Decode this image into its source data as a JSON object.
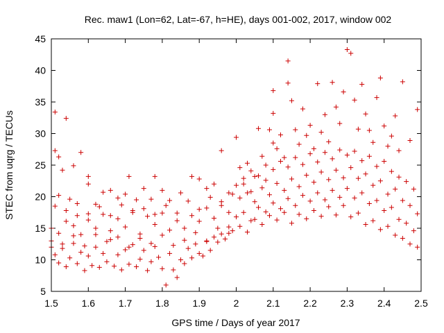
{
  "chart_data": {
    "type": "scatter",
    "title": "Rec. maw1 (Lon=62, Lat=-67, h=HE), days 001-002, 2017, window 002",
    "xlabel": "GPS time / Days of year 2017",
    "ylabel": "STEC from uqrg / TECUs",
    "xlim": [
      1.5,
      2.5
    ],
    "ylim": [
      5,
      45
    ],
    "xticks": [
      1.5,
      1.6,
      1.7,
      1.8,
      1.9,
      2.0,
      2.1,
      2.2,
      2.3,
      2.4,
      2.5
    ],
    "xtick_labels": [
      "1.5",
      "1.6",
      "1.7",
      "1.8",
      "1.9",
      "2",
      "2.1",
      "2.2",
      "2.3",
      "2.4",
      "2.5"
    ],
    "yticks": [
      5,
      10,
      15,
      20,
      25,
      30,
      35,
      40,
      45
    ],
    "ytick_labels": [
      "5",
      "10",
      "15",
      "20",
      "25",
      "30",
      "35",
      "40",
      "45"
    ],
    "grid": false,
    "marker": "+",
    "marker_color": "#cc0000",
    "series": [
      {
        "name": "STEC",
        "points": [
          [
            1.51,
            33.4
          ],
          [
            1.54,
            32.4
          ],
          [
            1.52,
            26.3
          ],
          [
            1.56,
            24.9
          ],
          [
            1.53,
            24.2
          ],
          [
            1.51,
            27.3
          ],
          [
            1.58,
            27.0
          ],
          [
            1.6,
            23.2
          ],
          [
            1.6,
            22.0
          ],
          [
            1.52,
            20.2
          ],
          [
            1.55,
            19.6
          ],
          [
            1.57,
            17.0
          ],
          [
            1.62,
            18.8
          ],
          [
            1.64,
            20.7
          ],
          [
            1.66,
            21.0
          ],
          [
            1.68,
            19.8
          ],
          [
            1.7,
            20.4
          ],
          [
            1.71,
            23.2
          ],
          [
            1.73,
            19.5
          ],
          [
            1.75,
            21.3
          ],
          [
            1.77,
            19.6
          ],
          [
            1.78,
            23.2
          ],
          [
            1.8,
            21.0
          ],
          [
            1.82,
            19.4
          ],
          [
            1.85,
            20.6
          ],
          [
            1.88,
            23.2
          ],
          [
            1.9,
            22.8
          ],
          [
            1.92,
            21.3
          ],
          [
            1.94,
            22.0
          ],
          [
            1.96,
            27.3
          ],
          [
            1.98,
            20.6
          ],
          [
            1.5,
            12.0
          ],
          [
            1.51,
            10.8
          ],
          [
            1.52,
            9.5
          ],
          [
            1.53,
            11.8
          ],
          [
            1.54,
            8.9
          ],
          [
            1.55,
            10.3
          ],
          [
            1.56,
            12.6
          ],
          [
            1.57,
            9.4
          ],
          [
            1.58,
            11.2
          ],
          [
            1.59,
            8.3
          ],
          [
            1.6,
            10.6
          ],
          [
            1.61,
            9.1
          ],
          [
            1.62,
            12.0
          ],
          [
            1.63,
            8.8
          ],
          [
            1.64,
            11.0
          ],
          [
            1.65,
            9.7
          ],
          [
            1.66,
            13.2
          ],
          [
            1.67,
            9.0
          ],
          [
            1.68,
            10.8
          ],
          [
            1.69,
            8.4
          ],
          [
            1.7,
            11.6
          ],
          [
            1.71,
            9.3
          ],
          [
            1.72,
            12.4
          ],
          [
            1.73,
            8.9
          ],
          [
            1.74,
            10.1
          ],
          [
            1.75,
            11.5
          ],
          [
            1.76,
            8.3
          ],
          [
            1.77,
            9.7
          ],
          [
            1.78,
            12.1
          ],
          [
            1.79,
            10.4
          ],
          [
            1.8,
            8.6
          ],
          [
            1.81,
            6.0
          ],
          [
            1.82,
            11.0
          ],
          [
            1.83,
            8.4
          ],
          [
            1.84,
            7.2
          ],
          [
            1.85,
            10.0
          ],
          [
            1.86,
            9.4
          ],
          [
            1.87,
            11.8
          ],
          [
            1.88,
            10.3
          ],
          [
            1.89,
            12.5
          ],
          [
            1.9,
            11.0
          ],
          [
            1.91,
            10.6
          ],
          [
            1.92,
            12.9
          ],
          [
            1.93,
            11.5
          ],
          [
            1.94,
            13.6
          ],
          [
            1.95,
            12.8
          ],
          [
            1.96,
            14.1
          ],
          [
            1.97,
            13.3
          ],
          [
            1.98,
            15.2
          ],
          [
            1.99,
            14.6
          ],
          [
            1.5,
            15.0
          ],
          [
            1.52,
            14.2
          ],
          [
            1.54,
            16.1
          ],
          [
            1.56,
            15.4
          ],
          [
            1.58,
            14.0
          ],
          [
            1.6,
            16.3
          ],
          [
            1.62,
            15.0
          ],
          [
            1.64,
            17.2
          ],
          [
            1.66,
            14.6
          ],
          [
            1.68,
            16.5
          ],
          [
            1.7,
            15.2
          ],
          [
            1.72,
            17.8
          ],
          [
            1.74,
            14.1
          ],
          [
            1.76,
            16.9
          ],
          [
            1.78,
            15.6
          ],
          [
            1.8,
            17.4
          ],
          [
            1.82,
            14.7
          ],
          [
            1.84,
            16.2
          ],
          [
            1.86,
            15.0
          ],
          [
            1.88,
            17.0
          ],
          [
            1.9,
            16.1
          ],
          [
            1.92,
            18.2
          ],
          [
            1.94,
            16.6
          ],
          [
            1.96,
            19.2
          ],
          [
            1.98,
            17.5
          ],
          [
            1.5,
            13.0
          ],
          [
            1.53,
            12.5
          ],
          [
            1.56,
            13.8
          ],
          [
            1.59,
            12.2
          ],
          [
            1.62,
            14.0
          ],
          [
            1.65,
            12.9
          ],
          [
            1.68,
            13.6
          ],
          [
            1.71,
            12.0
          ],
          [
            1.74,
            13.4
          ],
          [
            1.77,
            12.6
          ],
          [
            1.8,
            13.9
          ],
          [
            1.83,
            12.3
          ],
          [
            1.86,
            13.1
          ],
          [
            1.89,
            14.3
          ],
          [
            1.92,
            13.0
          ],
          [
            1.95,
            15.0
          ],
          [
            1.98,
            14.2
          ],
          [
            1.51,
            18.5
          ],
          [
            1.54,
            17.8
          ],
          [
            1.57,
            18.9
          ],
          [
            1.6,
            17.3
          ],
          [
            1.63,
            18.4
          ],
          [
            1.66,
            17.0
          ],
          [
            1.69,
            18.7
          ],
          [
            1.72,
            17.5
          ],
          [
            1.75,
            18.1
          ],
          [
            1.78,
            17.2
          ],
          [
            1.81,
            18.6
          ],
          [
            1.84,
            17.4
          ],
          [
            1.87,
            19.3
          ],
          [
            1.9,
            18.0
          ],
          [
            1.93,
            19.9
          ],
          [
            1.96,
            18.6
          ],
          [
            1.99,
            20.4
          ],
          [
            2.0,
            29.4
          ],
          [
            2.01,
            24.6
          ],
          [
            2.02,
            22.0
          ],
          [
            2.03,
            25.3
          ],
          [
            2.04,
            20.8
          ],
          [
            2.05,
            23.2
          ],
          [
            2.06,
            30.8
          ],
          [
            2.07,
            26.4
          ],
          [
            2.08,
            22.6
          ],
          [
            2.09,
            30.6
          ],
          [
            2.1,
            28.5
          ],
          [
            2.1,
            33.2
          ],
          [
            2.1,
            36.8
          ],
          [
            2.11,
            27.6
          ],
          [
            2.12,
            29.8
          ],
          [
            2.13,
            26.2
          ],
          [
            2.14,
            38.0
          ],
          [
            2.14,
            41.5
          ],
          [
            2.15,
            35.2
          ],
          [
            2.16,
            30.6
          ],
          [
            2.17,
            28.3
          ],
          [
            2.18,
            33.9
          ],
          [
            2.19,
            29.7
          ],
          [
            2.2,
            31.3
          ],
          [
            2.21,
            27.6
          ],
          [
            2.22,
            37.9
          ],
          [
            2.23,
            30.2
          ],
          [
            2.24,
            33.0
          ],
          [
            2.25,
            28.7
          ],
          [
            2.26,
            38.1
          ],
          [
            2.27,
            34.2
          ],
          [
            2.28,
            31.6
          ],
          [
            2.29,
            36.6
          ],
          [
            2.3,
            43.3
          ],
          [
            2.31,
            42.7
          ],
          [
            2.32,
            35.3
          ],
          [
            2.33,
            30.7
          ],
          [
            2.34,
            37.8
          ],
          [
            2.35,
            33.1
          ],
          [
            2.36,
            30.5
          ],
          [
            2.37,
            28.6
          ],
          [
            2.38,
            35.7
          ],
          [
            2.39,
            38.8
          ],
          [
            2.4,
            31.2
          ],
          [
            2.41,
            28.0
          ],
          [
            2.42,
            29.6
          ],
          [
            2.43,
            32.8
          ],
          [
            2.44,
            27.3
          ],
          [
            2.45,
            38.2
          ],
          [
            2.47,
            28.9
          ],
          [
            2.49,
            33.8
          ],
          [
            2.0,
            21.8
          ],
          [
            2.02,
            22.9
          ],
          [
            2.04,
            24.1
          ],
          [
            2.06,
            23.3
          ],
          [
            2.08,
            25.0
          ],
          [
            2.1,
            24.3
          ],
          [
            2.12,
            25.6
          ],
          [
            2.14,
            24.7
          ],
          [
            2.16,
            26.2
          ],
          [
            2.18,
            25.1
          ],
          [
            2.2,
            26.8
          ],
          [
            2.22,
            25.5
          ],
          [
            2.24,
            27.0
          ],
          [
            2.26,
            26.0
          ],
          [
            2.28,
            27.4
          ],
          [
            2.3,
            26.6
          ],
          [
            2.32,
            27.2
          ],
          [
            2.34,
            25.7
          ],
          [
            2.36,
            26.4
          ],
          [
            2.38,
            24.8
          ],
          [
            2.4,
            25.6
          ],
          [
            2.42,
            24.0
          ],
          [
            2.44,
            23.1
          ],
          [
            2.46,
            22.4
          ],
          [
            2.48,
            21.2
          ],
          [
            2.01,
            19.8
          ],
          [
            2.03,
            20.6
          ],
          [
            2.05,
            19.2
          ],
          [
            2.07,
            21.4
          ],
          [
            2.09,
            20.3
          ],
          [
            2.11,
            22.1
          ],
          [
            2.13,
            21.0
          ],
          [
            2.15,
            22.8
          ],
          [
            2.17,
            21.6
          ],
          [
            2.19,
            23.4
          ],
          [
            2.21,
            22.3
          ],
          [
            2.23,
            23.9
          ],
          [
            2.25,
            22.7
          ],
          [
            2.27,
            24.2
          ],
          [
            2.29,
            23.0
          ],
          [
            2.31,
            24.6
          ],
          [
            2.33,
            22.9
          ],
          [
            2.35,
            23.6
          ],
          [
            2.37,
            21.8
          ],
          [
            2.39,
            22.5
          ],
          [
            2.41,
            20.4
          ],
          [
            2.43,
            21.2
          ],
          [
            2.45,
            19.4
          ],
          [
            2.47,
            18.6
          ],
          [
            2.49,
            17.3
          ],
          [
            2.0,
            16.8
          ],
          [
            2.02,
            17.5
          ],
          [
            2.04,
            16.2
          ],
          [
            2.06,
            18.3
          ],
          [
            2.08,
            17.6
          ],
          [
            2.1,
            19.0
          ],
          [
            2.12,
            18.1
          ],
          [
            2.14,
            19.7
          ],
          [
            2.16,
            18.6
          ],
          [
            2.18,
            20.2
          ],
          [
            2.2,
            19.3
          ],
          [
            2.22,
            20.6
          ],
          [
            2.24,
            19.5
          ],
          [
            2.26,
            21.0
          ],
          [
            2.28,
            19.9
          ],
          [
            2.3,
            21.3
          ],
          [
            2.32,
            19.8
          ],
          [
            2.34,
            20.6
          ],
          [
            2.36,
            18.9
          ],
          [
            2.38,
            19.4
          ],
          [
            2.4,
            17.8
          ],
          [
            2.42,
            18.3
          ],
          [
            2.44,
            16.4
          ],
          [
            2.46,
            15.8
          ],
          [
            2.48,
            14.6
          ],
          [
            2.01,
            15.3
          ],
          [
            2.03,
            14.4
          ],
          [
            2.05,
            16.4
          ],
          [
            2.07,
            15.6
          ],
          [
            2.09,
            17.0
          ],
          [
            2.11,
            16.3
          ],
          [
            2.13,
            17.5
          ],
          [
            2.15,
            15.8
          ],
          [
            2.17,
            17.2
          ],
          [
            2.19,
            16.5
          ],
          [
            2.21,
            17.8
          ],
          [
            2.23,
            16.9
          ],
          [
            2.25,
            18.4
          ],
          [
            2.27,
            17.1
          ],
          [
            2.29,
            18.6
          ],
          [
            2.31,
            16.8
          ],
          [
            2.33,
            17.4
          ],
          [
            2.35,
            15.6
          ],
          [
            2.37,
            16.2
          ],
          [
            2.39,
            14.8
          ],
          [
            2.41,
            15.3
          ],
          [
            2.43,
            13.9
          ],
          [
            2.45,
            13.4
          ],
          [
            2.47,
            12.5
          ],
          [
            2.49,
            12.0
          ]
        ]
      }
    ]
  }
}
